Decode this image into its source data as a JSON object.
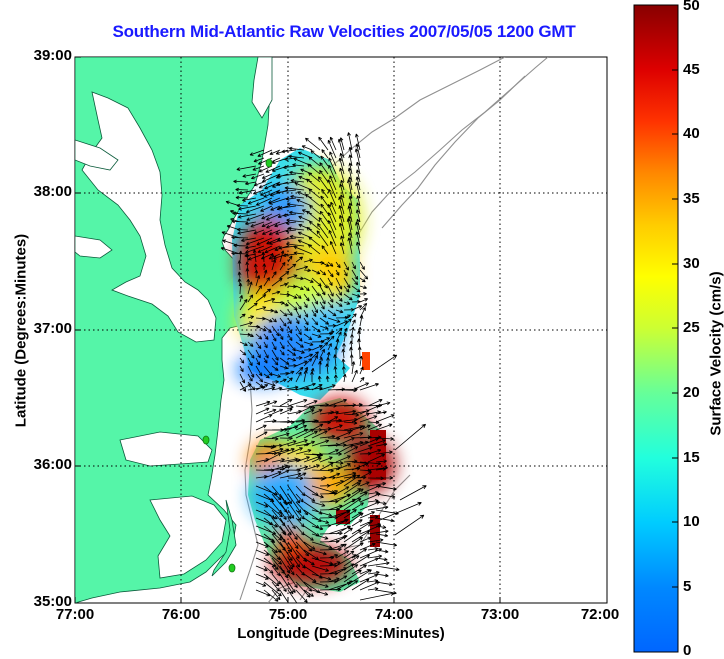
{
  "title": "Southern Mid-Atlantic Raw Velocities 2007/05/05 1200 GMT",
  "x_axis_label": "Longitude (Degrees:Minutes)",
  "y_axis_label": "Latitude (Degrees:Minutes)",
  "colorbar_label": "Surface Velocity (cm/s)",
  "x_ticks": [
    "77:00",
    "76:00",
    "75:00",
    "74:00",
    "73:00",
    "72:00"
  ],
  "y_ticks": [
    "39:00",
    "38:00",
    "37:00",
    "36:00",
    "35:00"
  ],
  "colorbar_ticks": [
    "50",
    "45",
    "40",
    "35",
    "30",
    "25",
    "20",
    "15",
    "10",
    "5",
    "0"
  ],
  "colors": {
    "land": "#55f5a8",
    "title": "#1a1aff",
    "grid": "#000000",
    "bathymetry": "#909090",
    "station": "#22cc22"
  },
  "chart_data": {
    "type": "heatmap",
    "title": "Southern Mid-Atlantic Raw Velocities 2007/05/05 1200 GMT",
    "xlabel": "Longitude (Degrees:Minutes)",
    "ylabel": "Latitude (Degrees:Minutes)",
    "colorbar_label": "Surface Velocity (cm/s)",
    "xlim": [
      -77,
      -72
    ],
    "ylim": [
      35,
      39
    ],
    "clim": [
      0,
      50
    ],
    "colormap": "jet",
    "grid": true,
    "colorbar_position": "right",
    "stations": [
      {
        "lon": -75.85,
        "lat": 38.18
      },
      {
        "lon": -76.25,
        "lat": 36.18
      },
      {
        "lon": -75.55,
        "lat": 35.27
      }
    ],
    "velocity_regions": [
      {
        "lon": -74.85,
        "lat": 37.75,
        "speed": 22
      },
      {
        "lon": -75.0,
        "lat": 37.55,
        "speed": 12
      },
      {
        "lon": -75.2,
        "lat": 37.45,
        "speed": 45
      },
      {
        "lon": -74.6,
        "lat": 37.4,
        "speed": 26
      },
      {
        "lon": -74.85,
        "lat": 36.85,
        "speed": 6
      },
      {
        "lon": -75.1,
        "lat": 36.7,
        "speed": 5
      },
      {
        "lon": -74.75,
        "lat": 36.2,
        "speed": 40
      },
      {
        "lon": -74.3,
        "lat": 36.0,
        "speed": 50
      },
      {
        "lon": -75.05,
        "lat": 36.05,
        "speed": 30
      },
      {
        "lon": -74.9,
        "lat": 35.75,
        "speed": 8
      },
      {
        "lon": -75.0,
        "lat": 35.35,
        "speed": 45
      }
    ]
  }
}
